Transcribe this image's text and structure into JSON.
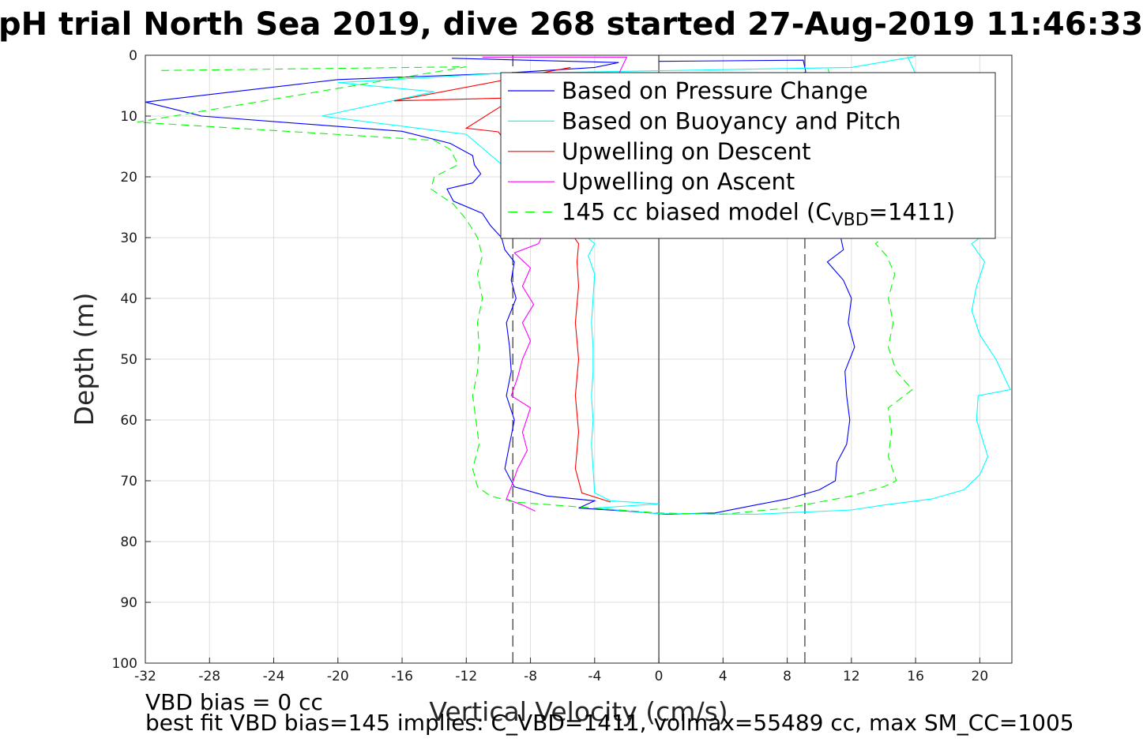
{
  "chart_data": {
    "type": "line",
    "title": "pH trial North Sea 2019, dive 268 started 27-Aug-2019 11:46:33",
    "xlabel": "Vertical Velocity (cm/s)",
    "ylabel": "Depth (m)",
    "xlim": [
      -32,
      22
    ],
    "ylim": [
      0,
      100
    ],
    "y_reversed": true,
    "grid": true,
    "xticks": [
      -32,
      -28,
      -24,
      -20,
      -16,
      -12,
      -8,
      -4,
      0,
      4,
      8,
      12,
      16,
      20
    ],
    "yticks": [
      0,
      10,
      20,
      30,
      40,
      50,
      60,
      70,
      80,
      90,
      100
    ],
    "legend_position": "top-right",
    "reference_lines": {
      "zero": 0,
      "dashed": [
        -9.1,
        9.1
      ]
    },
    "series": [
      {
        "name": "Based on Pressure Change",
        "color": "#0000ff",
        "style": "solid",
        "points": [
          [
            -12.9,
            0.5
          ],
          [
            -2.5,
            1.2
          ],
          [
            -4,
            2
          ],
          [
            -10,
            3
          ],
          [
            -20,
            4
          ],
          [
            -26.5,
            6
          ],
          [
            -32,
            7.7
          ],
          [
            -28.5,
            10
          ],
          [
            -16,
            12.5
          ],
          [
            -13,
            14.5
          ],
          [
            -11.6,
            16.5
          ],
          [
            -11.5,
            18
          ],
          [
            -11.1,
            19.5
          ],
          [
            -11.6,
            21
          ],
          [
            -13.2,
            22
          ],
          [
            -12.8,
            24
          ],
          [
            -11,
            26
          ],
          [
            -10.5,
            28
          ],
          [
            -9.8,
            30
          ],
          [
            -9.6,
            32
          ],
          [
            -9,
            34
          ],
          [
            -9.2,
            37
          ],
          [
            -8.9,
            40
          ],
          [
            -9.5,
            44
          ],
          [
            -9.3,
            48
          ],
          [
            -9.2,
            52
          ],
          [
            -9.5,
            56
          ],
          [
            -9,
            60
          ],
          [
            -9.3,
            64
          ],
          [
            -9.6,
            68
          ],
          [
            -9,
            71
          ],
          [
            -7,
            72.5
          ],
          [
            -4,
            73.3
          ],
          [
            -5,
            74.5
          ],
          [
            -2,
            75
          ],
          [
            0.5,
            75.5
          ],
          [
            3.5,
            75.3
          ],
          [
            6,
            74
          ],
          [
            8,
            73
          ],
          [
            10,
            71.5
          ],
          [
            11,
            70
          ],
          [
            11.1,
            67
          ],
          [
            11.7,
            64
          ],
          [
            11.9,
            60
          ],
          [
            11.7,
            56
          ],
          [
            11.6,
            52
          ],
          [
            12.2,
            48
          ],
          [
            11.8,
            44
          ],
          [
            12,
            40
          ],
          [
            11.5,
            37
          ],
          [
            10.5,
            34
          ],
          [
            11.5,
            32
          ],
          [
            9,
            0.8
          ],
          [
            0,
            1
          ]
        ]
      },
      {
        "name": "Based on Buoyancy and Pitch",
        "color": "#00ffff",
        "style": "solid",
        "points": [
          [
            16,
            0.2
          ],
          [
            12,
            2
          ],
          [
            -10,
            3
          ],
          [
            -20,
            4.5
          ],
          [
            -14,
            6
          ],
          [
            -21,
            10
          ],
          [
            -13.5,
            12.5
          ],
          [
            -12,
            13
          ],
          [
            -4,
            31
          ],
          [
            -4.4,
            33
          ],
          [
            -4,
            36
          ],
          [
            -4.1,
            40
          ],
          [
            -4.2,
            44
          ],
          [
            -4.1,
            48
          ],
          [
            -4.1,
            52
          ],
          [
            -4.2,
            56
          ],
          [
            -4.1,
            60
          ],
          [
            -4.2,
            64
          ],
          [
            -4.1,
            68
          ],
          [
            -4,
            72
          ],
          [
            -3,
            73.3
          ],
          [
            0,
            73.8
          ],
          [
            -4,
            74.5
          ],
          [
            0,
            75.4
          ],
          [
            6,
            75.5
          ],
          [
            12,
            74.8
          ],
          [
            14,
            74
          ],
          [
            17,
            73
          ],
          [
            19,
            71.5
          ],
          [
            20,
            69
          ],
          [
            20.5,
            66
          ],
          [
            19.8,
            60
          ],
          [
            19.9,
            56
          ],
          [
            21.9,
            55
          ],
          [
            21,
            50
          ],
          [
            20,
            46
          ],
          [
            19.5,
            42
          ],
          [
            19.8,
            38
          ],
          [
            20.3,
            34
          ],
          [
            19.5,
            31
          ],
          [
            20.5,
            29
          ],
          [
            15.5,
            0.2
          ]
        ]
      },
      {
        "name": "Upwelling on Descent",
        "color": "#ff0000",
        "style": "solid",
        "points": [
          [
            -5.5,
            2
          ],
          [
            -16.5,
            7.5
          ],
          [
            -9,
            7
          ],
          [
            -12,
            12
          ],
          [
            -10,
            12.6
          ],
          [
            -5,
            31
          ],
          [
            -5.1,
            34
          ],
          [
            -5,
            38
          ],
          [
            -5.2,
            44
          ],
          [
            -5,
            50
          ],
          [
            -5.2,
            56
          ],
          [
            -5,
            62
          ],
          [
            -5.2,
            68
          ],
          [
            -4.8,
            72
          ],
          [
            -3,
            73.5
          ]
        ]
      },
      {
        "name": "Upwelling on Ascent",
        "color": "#ff00ff",
        "style": "solid",
        "points": [
          [
            -11,
            0.3
          ],
          [
            -2,
            0.3
          ],
          [
            -7.5,
            31
          ],
          [
            -9,
            32.5
          ],
          [
            -8,
            35
          ],
          [
            -8.5,
            38
          ],
          [
            -7.8,
            41
          ],
          [
            -8.5,
            44
          ],
          [
            -8,
            47
          ],
          [
            -8.5,
            50
          ],
          [
            -8.8,
            53
          ],
          [
            -9.2,
            56
          ],
          [
            -8,
            58
          ],
          [
            -8.5,
            62
          ],
          [
            -8.2,
            65
          ],
          [
            -8.8,
            68
          ],
          [
            -9.2,
            71
          ],
          [
            -9.5,
            73
          ],
          [
            -8.5,
            74
          ],
          [
            -7.7,
            75
          ]
        ]
      },
      {
        "name": "145 cc biased model (C_VBD=1411)",
        "color": "#00ff00",
        "style": "dashed",
        "points": [
          [
            -31,
            2.5
          ],
          [
            -12,
            1.9
          ],
          [
            -32.5,
            11
          ],
          [
            -14,
            14
          ],
          [
            -13,
            15.5
          ],
          [
            -12.5,
            18
          ],
          [
            -14,
            20
          ],
          [
            -14.2,
            22
          ],
          [
            -12.8,
            24.5
          ],
          [
            -12,
            27
          ],
          [
            -11.3,
            30
          ],
          [
            -11,
            33
          ],
          [
            -11.3,
            36
          ],
          [
            -11,
            40
          ],
          [
            -11.3,
            44
          ],
          [
            -11.2,
            48
          ],
          [
            -11.3,
            52
          ],
          [
            -11.6,
            56
          ],
          [
            -11.4,
            60
          ],
          [
            -11.2,
            64
          ],
          [
            -11.6,
            68
          ],
          [
            -11.3,
            71
          ],
          [
            -10.5,
            72.5
          ],
          [
            -9,
            73.5
          ],
          [
            0,
            75.3
          ],
          [
            4,
            75.5
          ],
          [
            8,
            74.5
          ],
          [
            10,
            73.5
          ],
          [
            12,
            72.5
          ],
          [
            14,
            71
          ],
          [
            14.8,
            70
          ],
          [
            14.3,
            66
          ],
          [
            14.5,
            62
          ],
          [
            14.3,
            58
          ],
          [
            15.8,
            55
          ],
          [
            14.8,
            52
          ],
          [
            14.3,
            48
          ],
          [
            14.6,
            44
          ],
          [
            14.3,
            40
          ],
          [
            14.7,
            36
          ],
          [
            14.2,
            33
          ],
          [
            13.5,
            31
          ],
          [
            14.4,
            29
          ],
          [
            10.5,
            2
          ]
        ]
      }
    ],
    "legend": [
      {
        "label": "Based on Pressure Change",
        "color": "#0000ff",
        "dashed": false
      },
      {
        "label": "Based on Buoyancy and Pitch",
        "color": "#00ffff",
        "dashed": false
      },
      {
        "label": "Upwelling on Descent",
        "color": "#ff0000",
        "dashed": false
      },
      {
        "label": "Upwelling on Ascent",
        "color": "#ff00ff",
        "dashed": false
      },
      {
        "label_main": "145 cc biased model (C",
        "label_sub": "VBD",
        "label_end": "=1411)",
        "color": "#00ff00",
        "dashed": true
      }
    ]
  },
  "notes": {
    "line1": "VBD bias = 0 cc",
    "line2": "best fit VBD bias=145 implies: C_VBD=1411, volmax=55489 cc, max SM_CC=1005"
  }
}
